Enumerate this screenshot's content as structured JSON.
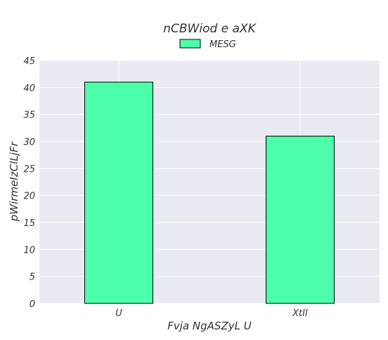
{
  "chart_data": {
    "type": "bar",
    "title": "nCBWiod e aXK",
    "xlabel": "Fvja NgASZyL U",
    "ylabel": "pWirmeIzClLjFr",
    "categories": [
      "U",
      "XtII"
    ],
    "series": [
      {
        "name": "MESG",
        "values": [
          41,
          31
        ],
        "color": "#4dffaa"
      }
    ],
    "ylim": [
      0,
      45
    ],
    "yticks": [
      0,
      5,
      10,
      15,
      20,
      25,
      30,
      35,
      40,
      45
    ],
    "grid": true,
    "legend": "top-center",
    "background_color": "#eaeaf2",
    "edge_color": "#000000"
  }
}
